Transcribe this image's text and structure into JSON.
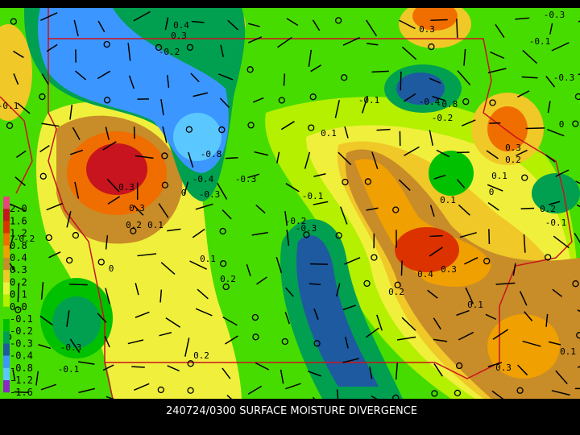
{
  "caption": "240724/0300 SURFACE MOISTURE DIVERGENCE",
  "legend": {
    "labels": [
      "2.0",
      "1.6",
      "1.2",
      "0.8",
      "0.4",
      "0.3",
      "0.2",
      "0.1",
      "0.0",
      "-0.1",
      "-0.2",
      "-0.3",
      "-0.4",
      "-0.8",
      "-1.2",
      "-1.6"
    ],
    "colors": [
      "#e6467a",
      "#c8141e",
      "#dc3200",
      "#f06e00",
      "#f0a000",
      "#c88c28",
      "#f0c828",
      "#f0f03c",
      "#b4f000",
      "#46dc00",
      "#00c000",
      "#00a050",
      "#1e5aa0",
      "#3c96ff",
      "#5ac8ff",
      "#8c28c8"
    ]
  },
  "contour_labels": [
    "0.4",
    "0.3",
    "-0.2",
    "0.3",
    "-0.1",
    "-0.3",
    "-0.3",
    "-0.1",
    "-0.4",
    "-0.8",
    "-0.2",
    "-0.8",
    "-0.4",
    "-0.3",
    "-0.3",
    "0.1",
    "-0.1",
    "0.3",
    "0.2",
    "0.1",
    "0",
    "0",
    "0.1",
    "0.2",
    "-0.1",
    "0.3",
    "0.3",
    "0.2",
    "0.1",
    "0",
    "-0.2",
    "-0.3",
    "-0.2",
    "0.1",
    "0.2",
    "0.4",
    "0.3",
    "0.2",
    "0.1",
    "0",
    "-0.3",
    "-0.1",
    "0.2",
    "0.3",
    "0.1",
    "-0.1"
  ]
}
